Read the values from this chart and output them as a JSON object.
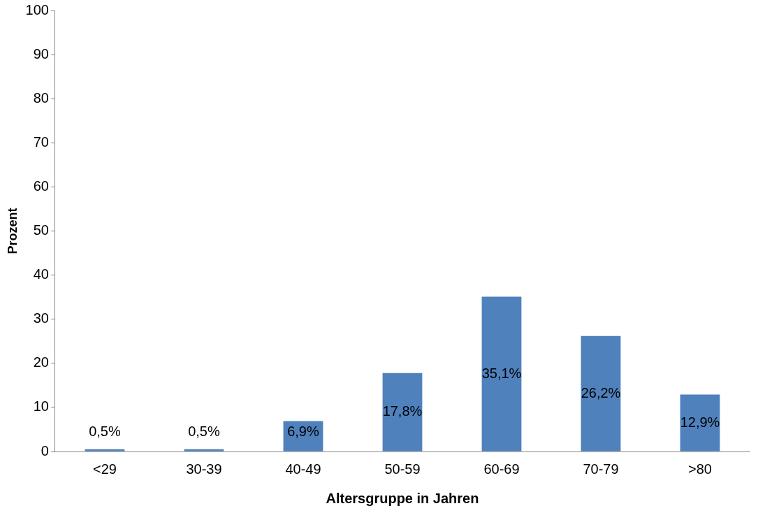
{
  "chart_data": {
    "type": "bar",
    "xlabel": "Altersgruppe in Jahren",
    "ylabel": "Prozent",
    "categories": [
      "<29",
      "30-39",
      "40-49",
      "50-59",
      "60-69",
      "70-79",
      ">80"
    ],
    "values": [
      0.5,
      0.5,
      6.9,
      17.8,
      35.1,
      26.2,
      12.9
    ],
    "value_labels": [
      "0,5%",
      "0,5%",
      "6,9%",
      "17,8%",
      "35,1%",
      "26,2%",
      "12,9%"
    ],
    "color": "#4f81bd",
    "ylim": [
      0,
      100
    ],
    "yticks": [
      0,
      10,
      20,
      30,
      40,
      50,
      60,
      70,
      80,
      90,
      100
    ]
  }
}
